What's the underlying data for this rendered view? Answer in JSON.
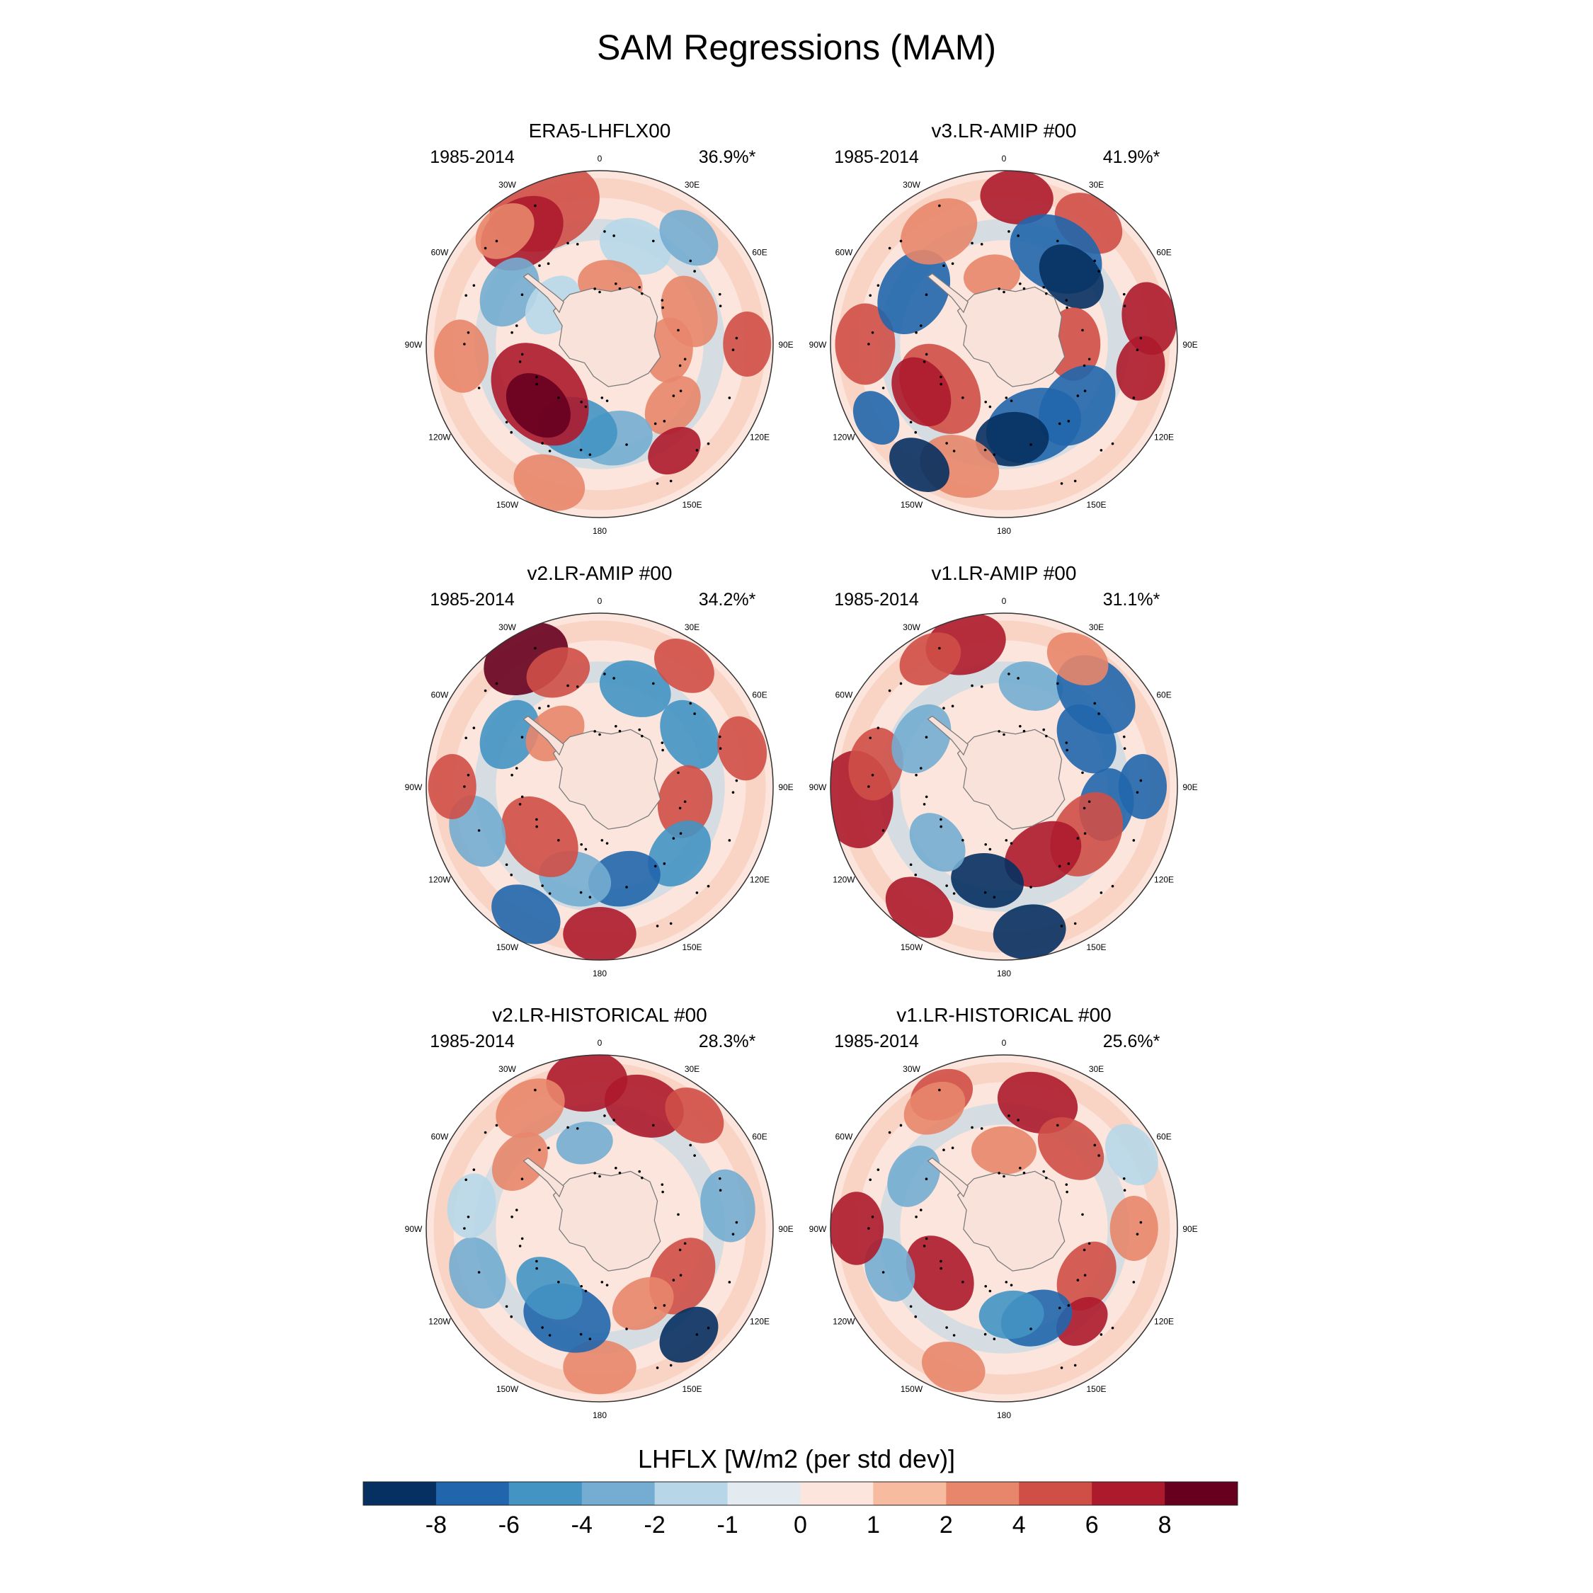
{
  "title": "SAM Regressions (MAM)",
  "colorbar": {
    "label": "LHFLX [W/m2 (per std dev)]",
    "levels": [
      "-8",
      "-6",
      "-4",
      "-2",
      "-1",
      "0",
      "1",
      "2",
      "4",
      "6",
      "8"
    ],
    "colors": [
      "#053061",
      "#2166ac",
      "#4393c3",
      "#74add1",
      "#b7d7e8",
      "#e3ebf1",
      "#fbe5dc",
      "#f7bba0",
      "#e8866c",
      "#cf4f47",
      "#ad1a2c",
      "#67001f"
    ]
  },
  "map_labels": {
    "lon_labels": [
      "0",
      "30E",
      "60E",
      "90E",
      "120E",
      "150E",
      "180",
      "150W",
      "120W",
      "90W",
      "60W",
      "30W"
    ]
  },
  "chart_data": [
    {
      "type": "heatmap",
      "panel_title": "ERA5-LHFLX00",
      "period": "1985-2014",
      "variance_explained": "36.9%*",
      "variance_pct": 36.9,
      "significant": true
    },
    {
      "type": "heatmap",
      "panel_title": "v3.LR-AMIP  #00",
      "period": "1985-2014",
      "variance_explained": "41.9%*",
      "variance_pct": 41.9,
      "significant": true
    },
    {
      "type": "heatmap",
      "panel_title": "v2.LR-AMIP  #00",
      "period": "1985-2014",
      "variance_explained": "34.2%*",
      "variance_pct": 34.2,
      "significant": true
    },
    {
      "type": "heatmap",
      "panel_title": "v1.LR-AMIP  #00",
      "period": "1985-2014",
      "variance_explained": "31.1%*",
      "variance_pct": 31.1,
      "significant": true
    },
    {
      "type": "heatmap",
      "panel_title": "v2.LR-HISTORICAL  #00",
      "period": "1985-2014",
      "variance_explained": "28.3%*",
      "variance_pct": 28.3,
      "significant": true
    },
    {
      "type": "heatmap",
      "panel_title": "v1.LR-HISTORICAL  #00",
      "period": "1985-2014",
      "variance_explained": "25.6%*",
      "variance_pct": 25.6,
      "significant": true
    }
  ]
}
